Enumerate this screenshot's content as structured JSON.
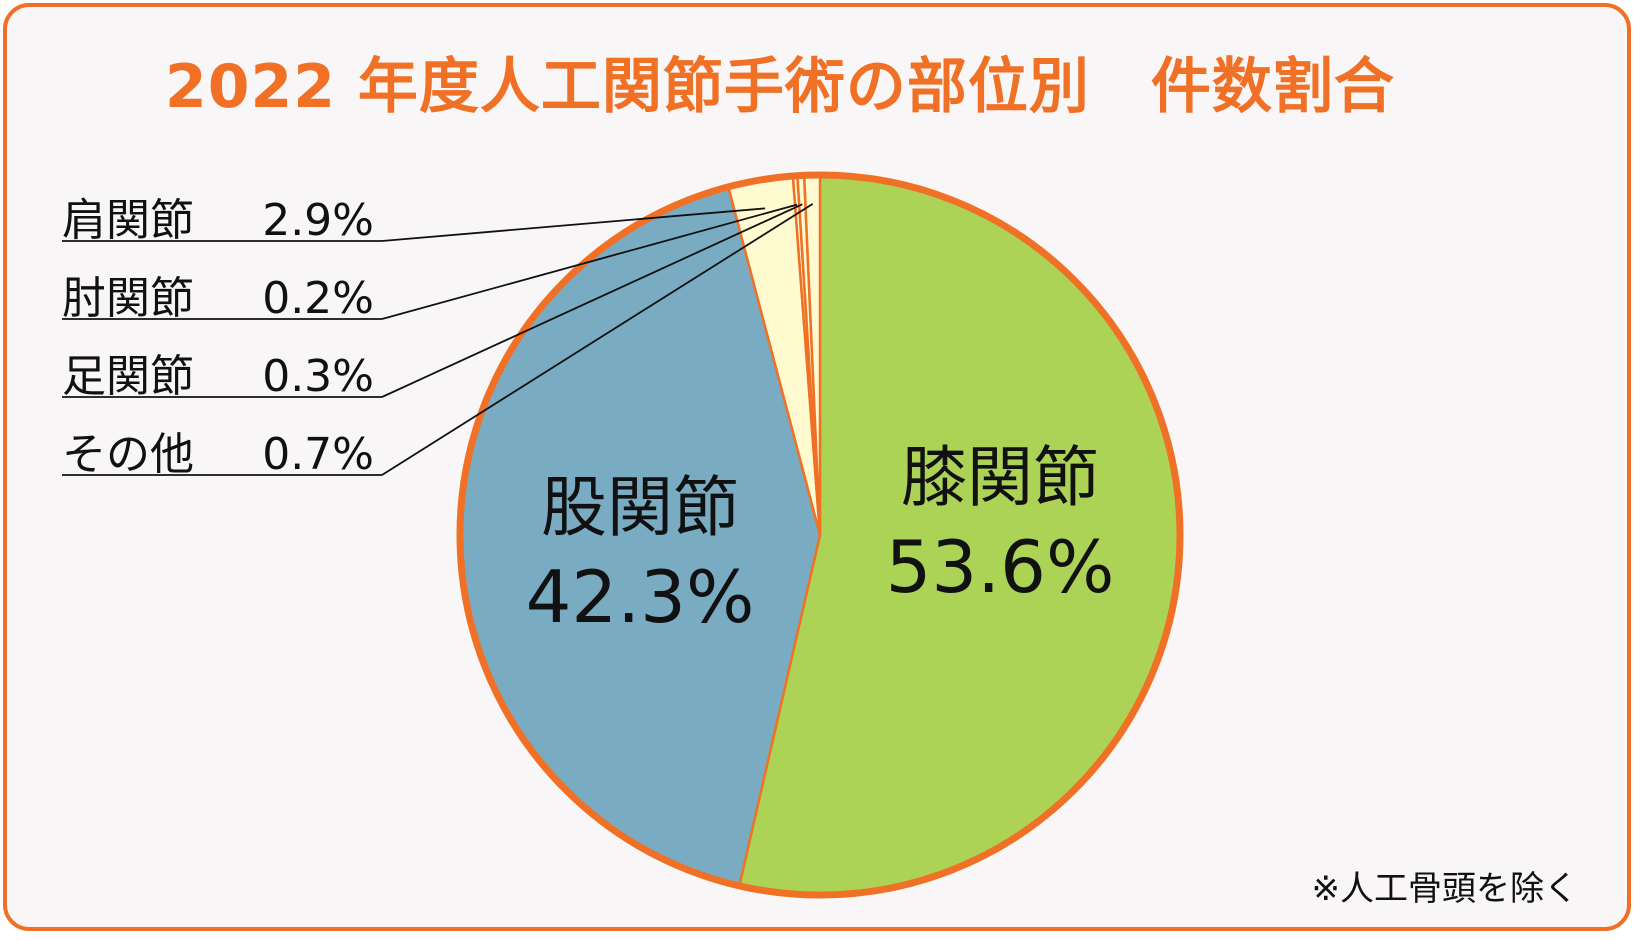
{
  "title": "2022 年度人工関節手術の部位別　件数割合",
  "footnote": "※人工骨頭を除く",
  "colors": {
    "accent": "#f07126",
    "knee": "#acd356",
    "hip": "#79acc3",
    "minor": "#fffad0",
    "background": "#f8f6f6"
  },
  "chart_data": {
    "type": "pie",
    "title": "2022 年度人工関節手術の部位別　件数割合",
    "start": "12 o'clock, clockwise",
    "slices": [
      {
        "name": "膝関節",
        "value": 53.6,
        "value_label": "53.6%",
        "color": "#acd356",
        "label_style": "inside"
      },
      {
        "name": "股関節",
        "value": 42.3,
        "value_label": "42.3%",
        "color": "#79acc3",
        "label_style": "inside"
      },
      {
        "name": "肩関節",
        "value": 2.9,
        "value_label": "2.9%",
        "color": "#fffad0",
        "label_style": "leader"
      },
      {
        "name": "肘関節",
        "value": 0.2,
        "value_label": "0.2%",
        "color": "#fffad0",
        "label_style": "leader"
      },
      {
        "name": "足関節",
        "value": 0.3,
        "value_label": "0.3%",
        "color": "#fffad0",
        "label_style": "leader"
      },
      {
        "name": "その他",
        "value": 0.7,
        "value_label": "0.7%",
        "color": "#fffad0",
        "label_style": "leader"
      }
    ]
  }
}
